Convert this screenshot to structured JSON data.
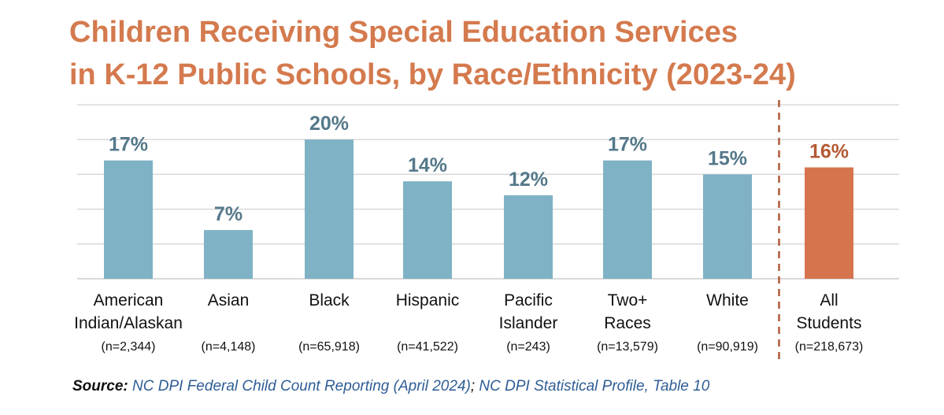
{
  "title": {
    "line1": "Children Receiving Special Education Services",
    "line2": "in K-12 Public Schools, by Race/Ethnicity (2023-24)"
  },
  "colors": {
    "title": "#D47A4E",
    "bar": "#7FB2C5",
    "bar_label": "#54788A",
    "highlight_bar": "#D6754D",
    "highlight_label": "#B35A33",
    "grid": "#D9D9D9",
    "divider": "#B05A3A"
  },
  "chart_data": {
    "type": "bar",
    "title": "Children Receiving Special Education Services in K-12 Public Schools, by Race/Ethnicity (2023-24)",
    "xlabel": "",
    "ylabel": "",
    "ylim": [
      0,
      25
    ],
    "grid": true,
    "unit": "%",
    "categories": [
      {
        "lines": [
          "American",
          "Indian/Alaskan"
        ],
        "n": "(n=2,344)",
        "value": 17,
        "label": "17%",
        "highlight": false
      },
      {
        "lines": [
          "Asian"
        ],
        "n": "(n=4,148)",
        "value": 7,
        "label": "7%",
        "highlight": false
      },
      {
        "lines": [
          "Black"
        ],
        "n": "(n=65,918)",
        "value": 20,
        "label": "20%",
        "highlight": false
      },
      {
        "lines": [
          "Hispanic"
        ],
        "n": "(n=41,522)",
        "value": 14,
        "label": "14%",
        "highlight": false
      },
      {
        "lines": [
          "Pacific",
          "Islander"
        ],
        "n": "(n=243)",
        "value": 12,
        "label": "12%",
        "highlight": false
      },
      {
        "lines": [
          "Two+",
          "Races"
        ],
        "n": "(n=13,579)",
        "value": 17,
        "label": "17%",
        "highlight": false
      },
      {
        "lines": [
          "White"
        ],
        "n": "(n=90,919)",
        "value": 15,
        "label": "15%",
        "highlight": false
      },
      {
        "lines": [
          "All",
          "Students"
        ],
        "n": "(n=218,673)",
        "value": 16,
        "label": "16%",
        "highlight": true
      }
    ]
  },
  "source": {
    "label": "Source:",
    "part1": "NC DPI Federal Child Count Reporting (April 2024)",
    "separator": ";",
    "part2": "NC DPI Statistical Profile, Table 10"
  }
}
